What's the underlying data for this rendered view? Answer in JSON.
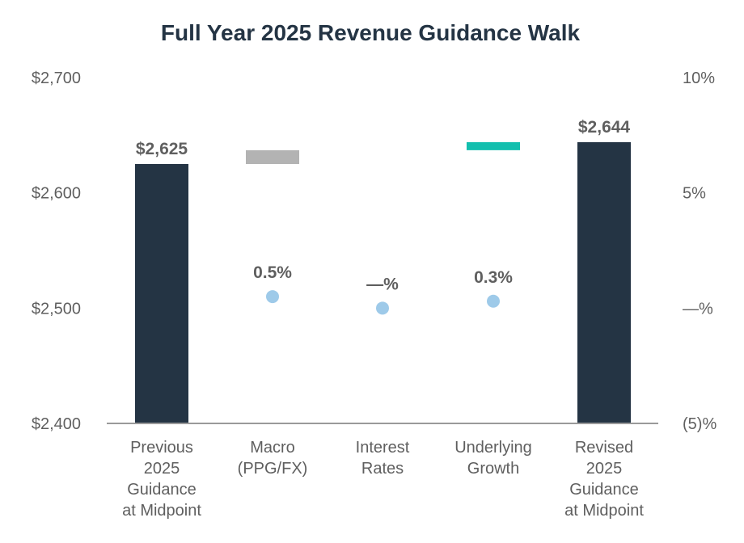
{
  "chart_data": {
    "type": "bar",
    "subtype": "waterfall",
    "title": "Full Year 2025 Revenue Guidance Walk",
    "left_axis": {
      "ylim": [
        2400,
        2700
      ],
      "ticks": [
        2400,
        2500,
        2600,
        2700
      ],
      "tick_labels": [
        "$2,400",
        "$2,500",
        "$2,600",
        "$2,700"
      ]
    },
    "right_axis": {
      "ylim": [
        -5,
        10
      ],
      "ticks": [
        -5,
        0,
        5,
        10
      ],
      "tick_labels": [
        "(5)%",
        "—%",
        "5%",
        "10%"
      ]
    },
    "grid": false,
    "categories": [
      [
        "Previous",
        "2025",
        "Guidance",
        "at Midpoint"
      ],
      [
        "Macro",
        "(PPG/FX)"
      ],
      [
        "Interest",
        "Rates"
      ],
      [
        "Underlying",
        "Growth"
      ],
      [
        "Revised",
        "2025",
        "Guidance",
        "at Midpoint"
      ]
    ],
    "bars": [
      {
        "kind": "total",
        "start": 2400,
        "end": 2625,
        "label": "$2,625",
        "color": "#243444"
      },
      {
        "kind": "delta",
        "start": 2625,
        "end": 2637,
        "label": "",
        "color": "#b3b3b3"
      },
      {
        "kind": "delta",
        "start": 2637,
        "end": 2637,
        "label": "",
        "color": "#b3b3b3"
      },
      {
        "kind": "delta",
        "start": 2637,
        "end": 2644,
        "label": "",
        "color": "#13bfae"
      },
      {
        "kind": "total",
        "start": 2400,
        "end": 2644,
        "label": "$2,644",
        "color": "#243444"
      }
    ],
    "growth_points": [
      {
        "category_index": 1,
        "value": 0.5,
        "label": "0.5%"
      },
      {
        "category_index": 2,
        "value": 0.0,
        "label": "—%"
      },
      {
        "category_index": 3,
        "value": 0.3,
        "label": "0.3%"
      }
    ],
    "point_color": "#9ecae9",
    "axis_color": "#9a9a9a"
  }
}
